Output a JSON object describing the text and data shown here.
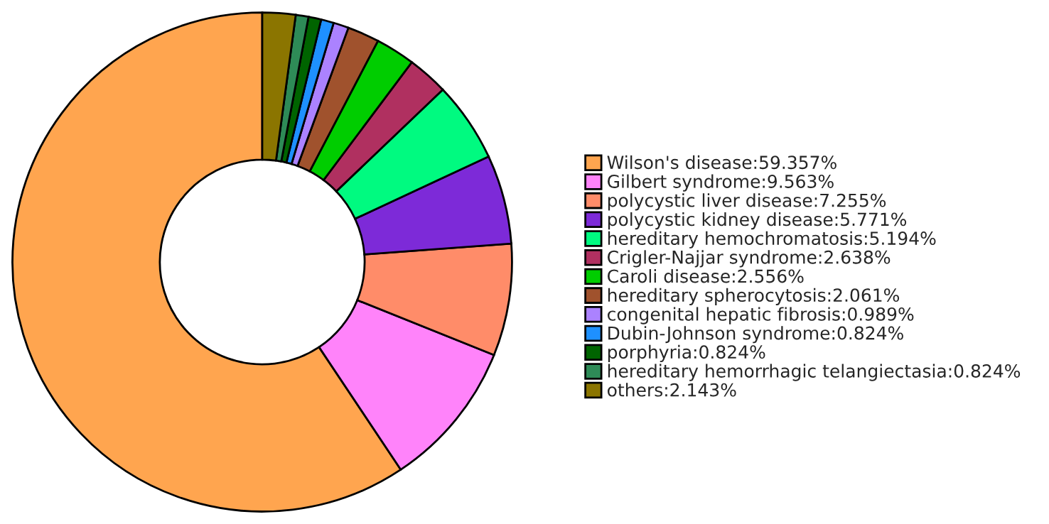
{
  "chart_data": {
    "type": "donut",
    "categories": [
      "Wilson's disease:59.357%",
      "Gilbert syndrome:9.563%",
      "polycystic liver disease:7.255%",
      "polycystic kidney disease:5.771%",
      "hereditary hemochromatosis:5.194%",
      "Crigler-Najjar syndrome:2.638%",
      "Caroli disease:2.556%",
      "hereditary spherocytosis:2.061%",
      "congenital hepatic fibrosis:0.989%",
      "Dubin-Johnson syndrome:0.824%",
      "porphyria:0.824%",
      "hereditary hemorrhagic telangiectasia:0.824%",
      "others:2.143%"
    ],
    "values": [
      59.357,
      9.563,
      7.255,
      5.771,
      5.194,
      2.638,
      2.556,
      2.061,
      0.989,
      0.824,
      0.824,
      0.824,
      2.143
    ],
    "colors": [
      "#ffa54f",
      "#ff83fa",
      "#ff8c69",
      "#7d2ad8",
      "#00fa80",
      "#b03060",
      "#00cd00",
      "#a0522d",
      "#ab82ff",
      "#1e90ff",
      "#006400",
      "#2e8b57",
      "#8b7500"
    ],
    "legend": "right"
  }
}
